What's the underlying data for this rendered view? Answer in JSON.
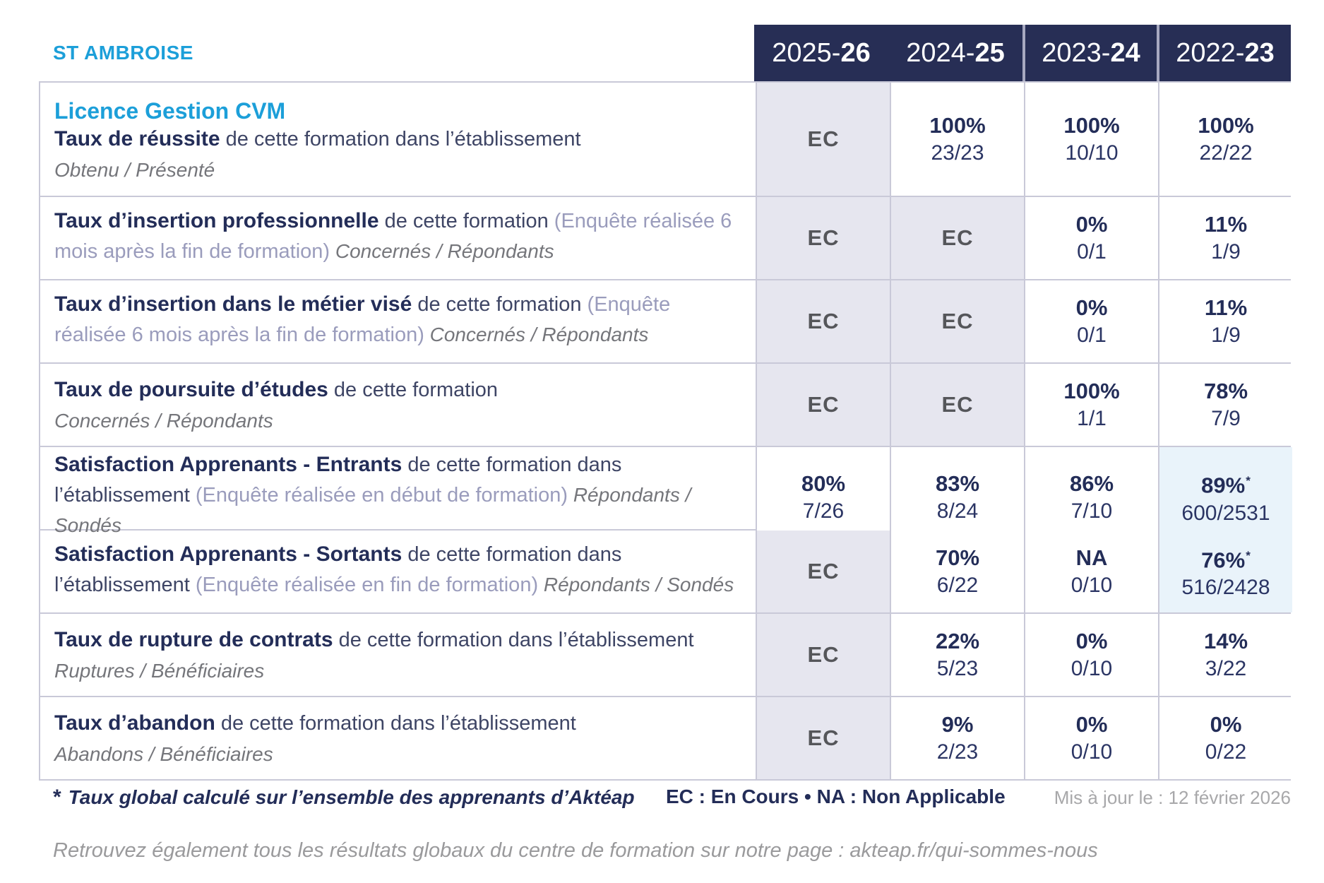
{
  "colors": {
    "accent_blue": "#1c9fd9",
    "navy": "#232d58",
    "header_bg": "#272e55",
    "ec_cell_bg": "#e6e6ef",
    "star_cell_bg": "#e9f3fa",
    "border": "#c9c9d8"
  },
  "header": {
    "school": "ST AMBROISE",
    "years": [
      {
        "prefix": "2025-",
        "bold": "26",
        "sep": false
      },
      {
        "prefix": "2024-",
        "bold": "25",
        "sep": false
      },
      {
        "prefix": "2023-",
        "bold": "24",
        "sep": true
      },
      {
        "prefix": "2022-",
        "bold": "23",
        "sep": true
      }
    ]
  },
  "table": {
    "rows": [
      {
        "program": "Licence Gestion CVM",
        "segments": [
          {
            "style": "title",
            "text": "Taux de réussite"
          },
          {
            "style": "plain",
            "text": " de cette formation dans l’établissement"
          }
        ],
        "subline": "Obtenu / Présenté",
        "cells": [
          {
            "kind": "ec",
            "text": "EC"
          },
          {
            "kind": "value",
            "pct": "100%",
            "frac": "23/23",
            "starred": false
          },
          {
            "kind": "value",
            "pct": "100%",
            "frac": "10/10",
            "starred": false
          },
          {
            "kind": "value",
            "pct": "100%",
            "frac": "22/22",
            "starred": false
          }
        ]
      },
      {
        "segments": [
          {
            "style": "title",
            "text": "Taux d’insertion professionnelle"
          },
          {
            "style": "plain",
            "text": " de cette formation "
          },
          {
            "style": "paren",
            "text": "(Enquête réalisée 6 mois après la fin de formation)"
          },
          {
            "style": "subinline",
            "text": " Concernés / Répondants"
          }
        ],
        "subline": "",
        "cells": [
          {
            "kind": "ec",
            "text": "EC"
          },
          {
            "kind": "ec",
            "text": "EC"
          },
          {
            "kind": "value",
            "pct": "0%",
            "frac": "0/1",
            "starred": false
          },
          {
            "kind": "value",
            "pct": "11%",
            "frac": "1/9",
            "starred": false
          }
        ]
      },
      {
        "segments": [
          {
            "style": "title",
            "text": "Taux d’insertion dans le métier visé"
          },
          {
            "style": "plain",
            "text": " de cette formation "
          },
          {
            "style": "paren",
            "text": "(Enquête réalisée 6 mois après la fin de formation)"
          },
          {
            "style": "subinline",
            "text": " Concernés / Répondants"
          }
        ],
        "subline": "",
        "cells": [
          {
            "kind": "ec",
            "text": "EC"
          },
          {
            "kind": "ec",
            "text": "EC"
          },
          {
            "kind": "value",
            "pct": "0%",
            "frac": "0/1",
            "starred": false
          },
          {
            "kind": "value",
            "pct": "11%",
            "frac": "1/9",
            "starred": false
          }
        ]
      },
      {
        "segments": [
          {
            "style": "title",
            "text": "Taux de poursuite d’études"
          },
          {
            "style": "plain",
            "text": " de cette formation"
          }
        ],
        "subline": "Concernés / Répondants",
        "cells": [
          {
            "kind": "ec",
            "text": "EC"
          },
          {
            "kind": "ec",
            "text": "EC"
          },
          {
            "kind": "value",
            "pct": "100%",
            "frac": "1/1",
            "starred": false
          },
          {
            "kind": "value",
            "pct": "78%",
            "frac": "7/9",
            "starred": false
          }
        ]
      },
      {
        "segments": [
          {
            "style": "title",
            "text": "Satisfaction Apprenants - Entrants"
          },
          {
            "style": "plain",
            "text": " de cette formation dans l’établissement "
          },
          {
            "style": "paren",
            "text": "(Enquête réalisée en début de formation)"
          },
          {
            "style": "subinline",
            "text": " Répondants / Sondés"
          }
        ],
        "subline": "",
        "cells": [
          {
            "kind": "value",
            "pct": "80%",
            "frac": "7/26",
            "starred": false
          },
          {
            "kind": "value",
            "pct": "83%",
            "frac": "8/24",
            "starred": false
          },
          {
            "kind": "value",
            "pct": "86%",
            "frac": "7/10",
            "starred": false
          },
          {
            "kind": "value",
            "pct": "89%",
            "frac": "600/2531",
            "starred": true
          }
        ]
      },
      {
        "segments": [
          {
            "style": "title",
            "text": "Satisfaction Apprenants - Sortants"
          },
          {
            "style": "plain",
            "text": " de cette formation dans l’établissement "
          },
          {
            "style": "paren",
            "text": "(Enquête réalisée en fin de formation)"
          },
          {
            "style": "subinline",
            "text": " Répondants / Sondés"
          }
        ],
        "subline": "",
        "cells": [
          {
            "kind": "ec",
            "text": "EC"
          },
          {
            "kind": "value",
            "pct": "70%",
            "frac": "6/22",
            "starred": false
          },
          {
            "kind": "value",
            "pct": "NA",
            "frac": "0/10",
            "starred": false
          },
          {
            "kind": "value",
            "pct": "76%",
            "frac": "516/2428",
            "starred": true
          }
        ]
      },
      {
        "segments": [
          {
            "style": "title",
            "text": "Taux de rupture de contrats"
          },
          {
            "style": "plain",
            "text": " de cette formation dans l’établissement"
          }
        ],
        "subline": "Ruptures / Bénéficiaires",
        "cells": [
          {
            "kind": "ec",
            "text": "EC"
          },
          {
            "kind": "value",
            "pct": "22%",
            "frac": "5/23",
            "starred": false
          },
          {
            "kind": "value",
            "pct": "0%",
            "frac": "0/10",
            "starred": false
          },
          {
            "kind": "value",
            "pct": "14%",
            "frac": "3/22",
            "starred": false
          }
        ]
      },
      {
        "segments": [
          {
            "style": "title",
            "text": "Taux d’abandon"
          },
          {
            "style": "plain",
            "text": " de cette formation dans l’établissement"
          }
        ],
        "subline": "Abandons / Bénéficiaires",
        "cells": [
          {
            "kind": "ec",
            "text": "EC"
          },
          {
            "kind": "value",
            "pct": "9%",
            "frac": "2/23",
            "starred": false
          },
          {
            "kind": "value",
            "pct": "0%",
            "frac": "0/10",
            "starred": false
          },
          {
            "kind": "value",
            "pct": "0%",
            "frac": "0/22",
            "starred": false
          }
        ]
      }
    ]
  },
  "legend": {
    "star_marker": "*",
    "footnote": "Taux global calculé sur l’ensemble des apprenants d’Aktéap",
    "abbreviations": "EC : En Cours   •   NA : Non Applicable",
    "updated": "Mis à jour le : 12 février 2026"
  },
  "footer": {
    "note": "Retrouvez également tous les résultats globaux du centre de formation sur notre page : akteap.fr/qui-sommes-nous"
  }
}
